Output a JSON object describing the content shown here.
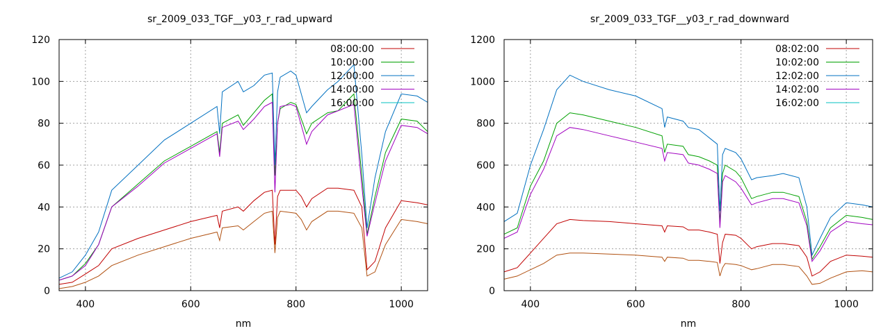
{
  "chart_data": [
    {
      "type": "line",
      "title": "sr_2009_033_TGF__y03_r_rad_upward",
      "xlabel": "nm",
      "ylabel": "",
      "xlim": [
        350,
        1050
      ],
      "ylim": [
        0,
        120
      ],
      "xticks": [
        400,
        600,
        800,
        1000
      ],
      "yticks": [
        0,
        20,
        40,
        60,
        80,
        100,
        120
      ],
      "grid": true,
      "legend_position": "top-right",
      "series": [
        {
          "name": "08:00:00",
          "color": "#c00000",
          "x": [
            350,
            375,
            400,
            425,
            450,
            500,
            550,
            600,
            650,
            655,
            660,
            690,
            700,
            720,
            740,
            755,
            760,
            765,
            770,
            800,
            810,
            820,
            830,
            860,
            880,
            910,
            925,
            935,
            950,
            970,
            1000,
            1030,
            1050
          ],
          "y": [
            3,
            4,
            8,
            12,
            20,
            25,
            29,
            33,
            36,
            30,
            38,
            40,
            38,
            43,
            47,
            48,
            22,
            45,
            48,
            48,
            45,
            40,
            44,
            49,
            49,
            48,
            40,
            10,
            14,
            30,
            43,
            42,
            41
          ]
        },
        {
          "name": "10:00:00",
          "color": "#00a000",
          "x": [
            350,
            375,
            400,
            425,
            450,
            500,
            550,
            600,
            650,
            655,
            660,
            690,
            700,
            720,
            740,
            755,
            760,
            765,
            770,
            790,
            800,
            820,
            830,
            860,
            880,
            910,
            925,
            935,
            950,
            970,
            1000,
            1030,
            1050
          ],
          "y": [
            5,
            7,
            13,
            22,
            40,
            51,
            62,
            69,
            76,
            66,
            80,
            84,
            79,
            85,
            91,
            94,
            55,
            80,
            87,
            90,
            89,
            75,
            80,
            85,
            86,
            94,
            55,
            27,
            45,
            66,
            82,
            81,
            76
          ]
        },
        {
          "name": "12:00:00",
          "color": "#0070c0",
          "x": [
            350,
            375,
            400,
            425,
            450,
            500,
            550,
            600,
            650,
            655,
            660,
            690,
            700,
            720,
            740,
            755,
            760,
            765,
            770,
            790,
            800,
            820,
            830,
            860,
            880,
            910,
            925,
            935,
            950,
            970,
            1000,
            1030,
            1050
          ],
          "y": [
            6,
            9,
            17,
            28,
            48,
            60,
            72,
            80,
            88,
            75,
            95,
            100,
            95,
            98,
            103,
            104,
            60,
            95,
            102,
            105,
            103,
            85,
            88,
            96,
            100,
            108,
            65,
            30,
            54,
            76,
            94,
            93,
            90
          ]
        },
        {
          "name": "14:00:00",
          "color": "#a000c0",
          "x": [
            350,
            375,
            400,
            425,
            450,
            500,
            550,
            600,
            650,
            655,
            660,
            690,
            700,
            720,
            740,
            755,
            760,
            765,
            770,
            790,
            800,
            820,
            830,
            860,
            880,
            910,
            925,
            935,
            950,
            970,
            1000,
            1030,
            1050
          ],
          "y": [
            5,
            7,
            12,
            22,
            40,
            50,
            61,
            68,
            75,
            64,
            78,
            81,
            77,
            82,
            88,
            90,
            47,
            80,
            88,
            89,
            88,
            70,
            76,
            84,
            86,
            89,
            50,
            26,
            42,
            62,
            79,
            78,
            75
          ]
        },
        {
          "name": "16:00:00",
          "color": "#00c0c0",
          "x": [],
          "y": []
        },
        {
          "name": "",
          "color": "#b05010",
          "x": [
            350,
            375,
            400,
            425,
            450,
            500,
            550,
            600,
            650,
            655,
            660,
            690,
            700,
            720,
            740,
            755,
            760,
            765,
            770,
            800,
            810,
            820,
            830,
            860,
            880,
            910,
            925,
            935,
            950,
            970,
            1000,
            1030,
            1050
          ],
          "y": [
            1,
            2,
            4,
            7,
            12,
            17,
            21,
            25,
            28,
            24,
            30,
            31,
            29,
            33,
            37,
            38,
            18,
            35,
            38,
            37,
            34,
            29,
            33,
            38,
            38,
            37,
            30,
            7,
            9,
            22,
            34,
            33,
            32
          ]
        }
      ]
    },
    {
      "type": "line",
      "title": "sr_2009_033_TGF__y03_r_rad_downward",
      "xlabel": "nm",
      "ylabel": "",
      "xlim": [
        350,
        1050
      ],
      "ylim": [
        0,
        1200
      ],
      "xticks": [
        400,
        600,
        800,
        1000
      ],
      "yticks": [
        0,
        200,
        400,
        600,
        800,
        1000,
        1200
      ],
      "grid": true,
      "legend_position": "top-right",
      "series": [
        {
          "name": "08:02:00",
          "color": "#c00000",
          "x": [
            350,
            375,
            400,
            425,
            450,
            475,
            500,
            550,
            600,
            650,
            655,
            660,
            690,
            700,
            720,
            740,
            755,
            760,
            765,
            770,
            790,
            800,
            820,
            830,
            860,
            880,
            910,
            925,
            935,
            950,
            970,
            1000,
            1030,
            1050
          ],
          "y": [
            90,
            110,
            180,
            250,
            320,
            340,
            335,
            330,
            320,
            310,
            280,
            310,
            305,
            290,
            290,
            280,
            270,
            130,
            230,
            270,
            265,
            250,
            200,
            210,
            225,
            225,
            215,
            160,
            70,
            90,
            140,
            170,
            165,
            160
          ]
        },
        {
          "name": "10:02:00",
          "color": "#00a000",
          "x": [
            350,
            375,
            400,
            425,
            450,
            475,
            500,
            550,
            600,
            650,
            655,
            660,
            690,
            700,
            720,
            740,
            755,
            760,
            765,
            770,
            790,
            800,
            820,
            830,
            860,
            880,
            910,
            925,
            935,
            950,
            970,
            1000,
            1030,
            1050
          ],
          "y": [
            270,
            300,
            500,
            620,
            800,
            850,
            840,
            810,
            780,
            740,
            660,
            700,
            690,
            650,
            640,
            620,
            600,
            320,
            560,
            600,
            570,
            540,
            440,
            450,
            470,
            470,
            450,
            330,
            150,
            210,
            300,
            360,
            350,
            340
          ]
        },
        {
          "name": "12:02:00",
          "color": "#0070c0",
          "x": [
            350,
            375,
            400,
            425,
            450,
            475,
            500,
            550,
            600,
            650,
            655,
            660,
            690,
            700,
            720,
            740,
            755,
            760,
            765,
            770,
            790,
            800,
            820,
            830,
            860,
            880,
            910,
            925,
            935,
            950,
            970,
            1000,
            1030,
            1050
          ],
          "y": [
            330,
            370,
            600,
            770,
            960,
            1030,
            1000,
            960,
            930,
            870,
            780,
            830,
            810,
            780,
            770,
            730,
            700,
            380,
            650,
            680,
            660,
            630,
            530,
            540,
            550,
            560,
            540,
            400,
            170,
            250,
            350,
            420,
            410,
            400
          ]
        },
        {
          "name": "14:02:00",
          "color": "#a000c0",
          "x": [
            350,
            375,
            400,
            425,
            450,
            475,
            500,
            550,
            600,
            650,
            655,
            660,
            690,
            700,
            720,
            740,
            755,
            760,
            765,
            770,
            790,
            800,
            820,
            830,
            860,
            880,
            910,
            925,
            935,
            950,
            970,
            1000,
            1030,
            1050
          ],
          "y": [
            250,
            280,
            460,
            580,
            740,
            780,
            770,
            740,
            710,
            680,
            620,
            660,
            650,
            610,
            600,
            580,
            560,
            300,
            520,
            550,
            520,
            490,
            410,
            420,
            440,
            440,
            420,
            310,
            140,
            190,
            280,
            330,
            320,
            315
          ]
        },
        {
          "name": "16:02:00",
          "color": "#00c0c0",
          "x": [],
          "y": []
        },
        {
          "name": "",
          "color": "#b05010",
          "x": [
            350,
            375,
            400,
            425,
            450,
            475,
            500,
            550,
            600,
            650,
            655,
            660,
            690,
            700,
            720,
            740,
            755,
            760,
            765,
            770,
            790,
            800,
            820,
            830,
            860,
            880,
            910,
            925,
            935,
            950,
            970,
            1000,
            1030,
            1050
          ],
          "y": [
            55,
            70,
            100,
            130,
            170,
            180,
            180,
            175,
            170,
            160,
            140,
            160,
            155,
            145,
            145,
            140,
            135,
            70,
            110,
            130,
            125,
            120,
            100,
            105,
            125,
            125,
            115,
            70,
            30,
            35,
            60,
            90,
            95,
            90
          ]
        }
      ]
    }
  ]
}
